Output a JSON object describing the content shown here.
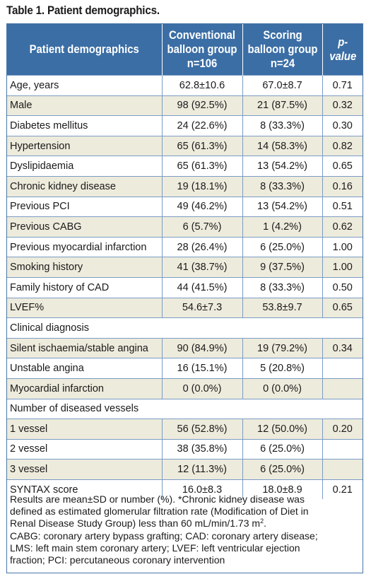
{
  "caption": "Table 1. Patient demographics.",
  "headers": {
    "col1": "Patient demographics",
    "col2_line1": "Conventional",
    "col2_line2": "balloon group",
    "col2_line3": "n=106",
    "col3_line1": "Scoring",
    "col3_line2": "balloon group",
    "col3_line3": "n=24",
    "col4": "p-value"
  },
  "rows": [
    {
      "label": "Age, years",
      "conv": "62.8±10.6",
      "scor": "67.0±8.7",
      "p": "0.71"
    },
    {
      "label": "Male",
      "conv": "98 (92.5%)",
      "scor": "21 (87.5%)",
      "p": "0.32"
    },
    {
      "label": "Diabetes mellitus",
      "conv": "24 (22.6%)",
      "scor": "8 (33.3%)",
      "p": "0.30"
    },
    {
      "label": "Hypertension",
      "conv": "65 (61.3%)",
      "scor": "14 (58.3%)",
      "p": "0.82"
    },
    {
      "label": "Dyslipidaemia",
      "conv": "65 (61.3%)",
      "scor": "13 (54.2%)",
      "p": "0.65"
    },
    {
      "label": "Chronic kidney disease",
      "conv": "19 (18.1%)",
      "scor": "8 (33.3%)",
      "p": "0.16"
    },
    {
      "label": "Previous PCI",
      "conv": "49 (46.2%)",
      "scor": "13 (54.2%)",
      "p": "0.51"
    },
    {
      "label": "Previous CABG",
      "conv": "6 (5.7%)",
      "scor": "1 (4.2%)",
      "p": "0.62"
    },
    {
      "label": "Previous myocardial infarction",
      "conv": "28 (26.4%)",
      "scor": "6 (25.0%)",
      "p": "1.00"
    },
    {
      "label": "Smoking history",
      "conv": "41 (38.7%)",
      "scor": "9 (37.5%)",
      "p": "1.00"
    },
    {
      "label": "Family history of CAD",
      "conv": "44 (41.5%)",
      "scor": "8 (33.3%)",
      "p": "0.50"
    },
    {
      "label": "LVEF%",
      "conv": "54.6±7.3",
      "scor": "53.8±9.7",
      "p": "0.65"
    },
    {
      "label": "Clinical diagnosis",
      "section": true
    },
    {
      "label": "Silent ischaemia/stable angina",
      "conv": "90 (84.9%)",
      "scor": "19 (79.2%)",
      "p": "0.34"
    },
    {
      "label": "Unstable angina",
      "conv": "16 (15.1%)",
      "scor": "5 (20.8%)",
      "p": ""
    },
    {
      "label": "Myocardial infarction",
      "conv": "0 (0.0%)",
      "scor": "0 (0.0%)",
      "p": ""
    },
    {
      "label": "Number of diseased vessels",
      "section": true
    },
    {
      "label": "1 vessel",
      "conv": "56 (52.8%)",
      "scor": "12 (50.0%)",
      "p": "0.20"
    },
    {
      "label": "2 vessel",
      "conv": "38 (35.8%)",
      "scor": "6 (25.0%)",
      "p": ""
    },
    {
      "label": "3 vessel",
      "conv": "12 (11.3%)",
      "scor": "6 (25.0%)",
      "p": ""
    },
    {
      "label": "SYNTAX score",
      "conv": "16.0±8.3",
      "scor": "18.0±8.9",
      "p": "0.21"
    }
  ],
  "footnote": {
    "line1": "Results are mean±SD or number (%). *Chronic kidney disease was",
    "line2": "defined as estimated glomerular filtration rate (Modification of Diet in",
    "line3a": "Renal Disease Study Group) less than 60 mL/min/1.73 m",
    "line3sup": "2",
    "line3b": ".",
    "line4": "CABG: coronary artery bypass grafting; CAD: coronary artery disease;",
    "line5": "LMS: left main stem coronary artery; LVEF: left ventricular ejection",
    "line6": "fraction; PCI: percutaneous coronary intervention"
  },
  "colors": {
    "header_bg": "#3b6ea5",
    "shade_bg": "#edebdc",
    "border": "#4a76a8"
  }
}
